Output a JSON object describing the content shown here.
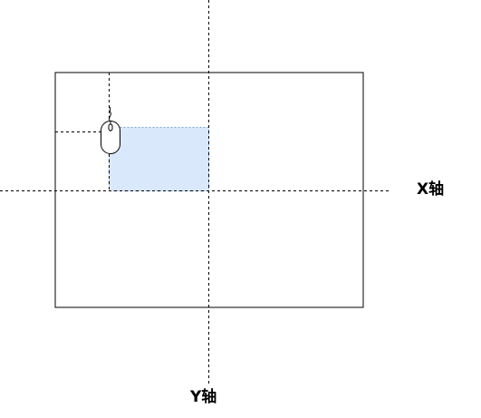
{
  "labels": {
    "x_axis": "X轴",
    "y_axis": "Y轴"
  },
  "colors": {
    "line": "#000000",
    "frame": "#000000",
    "selection_fill": "#dae8fc",
    "selection_stroke": "#7ea6e0",
    "background": "#ffffff"
  },
  "icons": {
    "cursor": "mouse-icon"
  }
}
